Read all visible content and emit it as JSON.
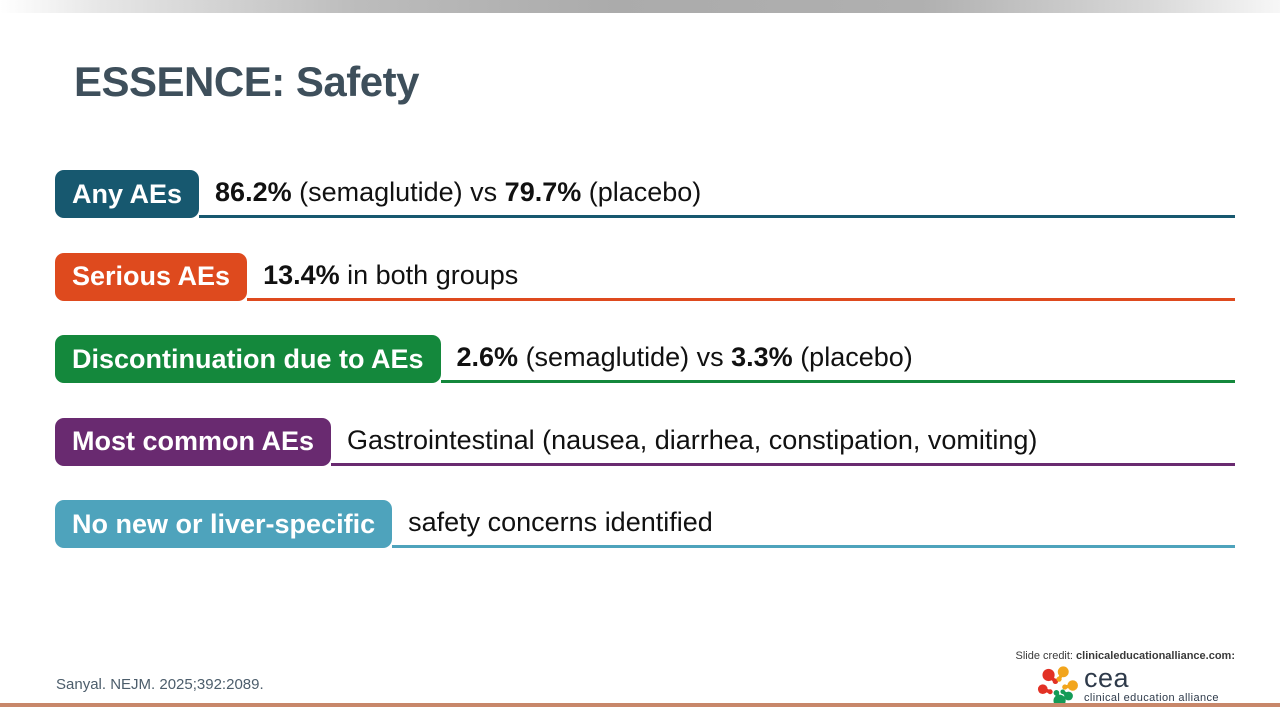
{
  "slide": {
    "title": "ESSENCE: Safety",
    "rows": [
      {
        "label": "Any AEs",
        "color": "#17586F",
        "segments": [
          {
            "text": "86.2%",
            "bold": true
          },
          {
            "text": " (semaglutide) vs ",
            "bold": false
          },
          {
            "text": "79.7%",
            "bold": true
          },
          {
            "text": " (placebo)",
            "bold": false
          }
        ]
      },
      {
        "label": "Serious AEs",
        "color": "#DE4A1E",
        "segments": [
          {
            "text": "13.4%",
            "bold": true
          },
          {
            "text": " in both groups",
            "bold": false
          }
        ]
      },
      {
        "label": "Discontinuation due to AEs",
        "color": "#14883C",
        "segments": [
          {
            "text": "2.6%",
            "bold": true
          },
          {
            "text": " (semaglutide) vs ",
            "bold": false
          },
          {
            "text": "3.3%",
            "bold": true
          },
          {
            "text": " (placebo)",
            "bold": false
          }
        ]
      },
      {
        "label": "Most common AEs",
        "color": "#692A70",
        "segments": [
          {
            "text": "Gastrointestinal (nausea, diarrhea, constipation, vomiting)",
            "bold": false
          }
        ]
      },
      {
        "label": "No new or liver-specific",
        "color": "#4EA3BC",
        "segments": [
          {
            "text": "safety concerns identified",
            "bold": false
          }
        ]
      }
    ],
    "citation": "Sanyal. NEJM. 2025;392:2089.",
    "credit": {
      "prefix": "Slide credit: ",
      "source": "clinicaleducationalliance.com:"
    },
    "logo": {
      "wordmark": "cea",
      "tagline": "clinical education alliance",
      "icon": "molecule-icon",
      "icon_colors": {
        "red": "#E23125",
        "yellow": "#F2A51D",
        "green": "#149B57"
      }
    }
  },
  "accents": {
    "title_color": "#3E4F5B",
    "citation_color": "#4C5D6B",
    "bottom_rule": "#C8876A",
    "top_bar_gray": "#ABABAB"
  }
}
